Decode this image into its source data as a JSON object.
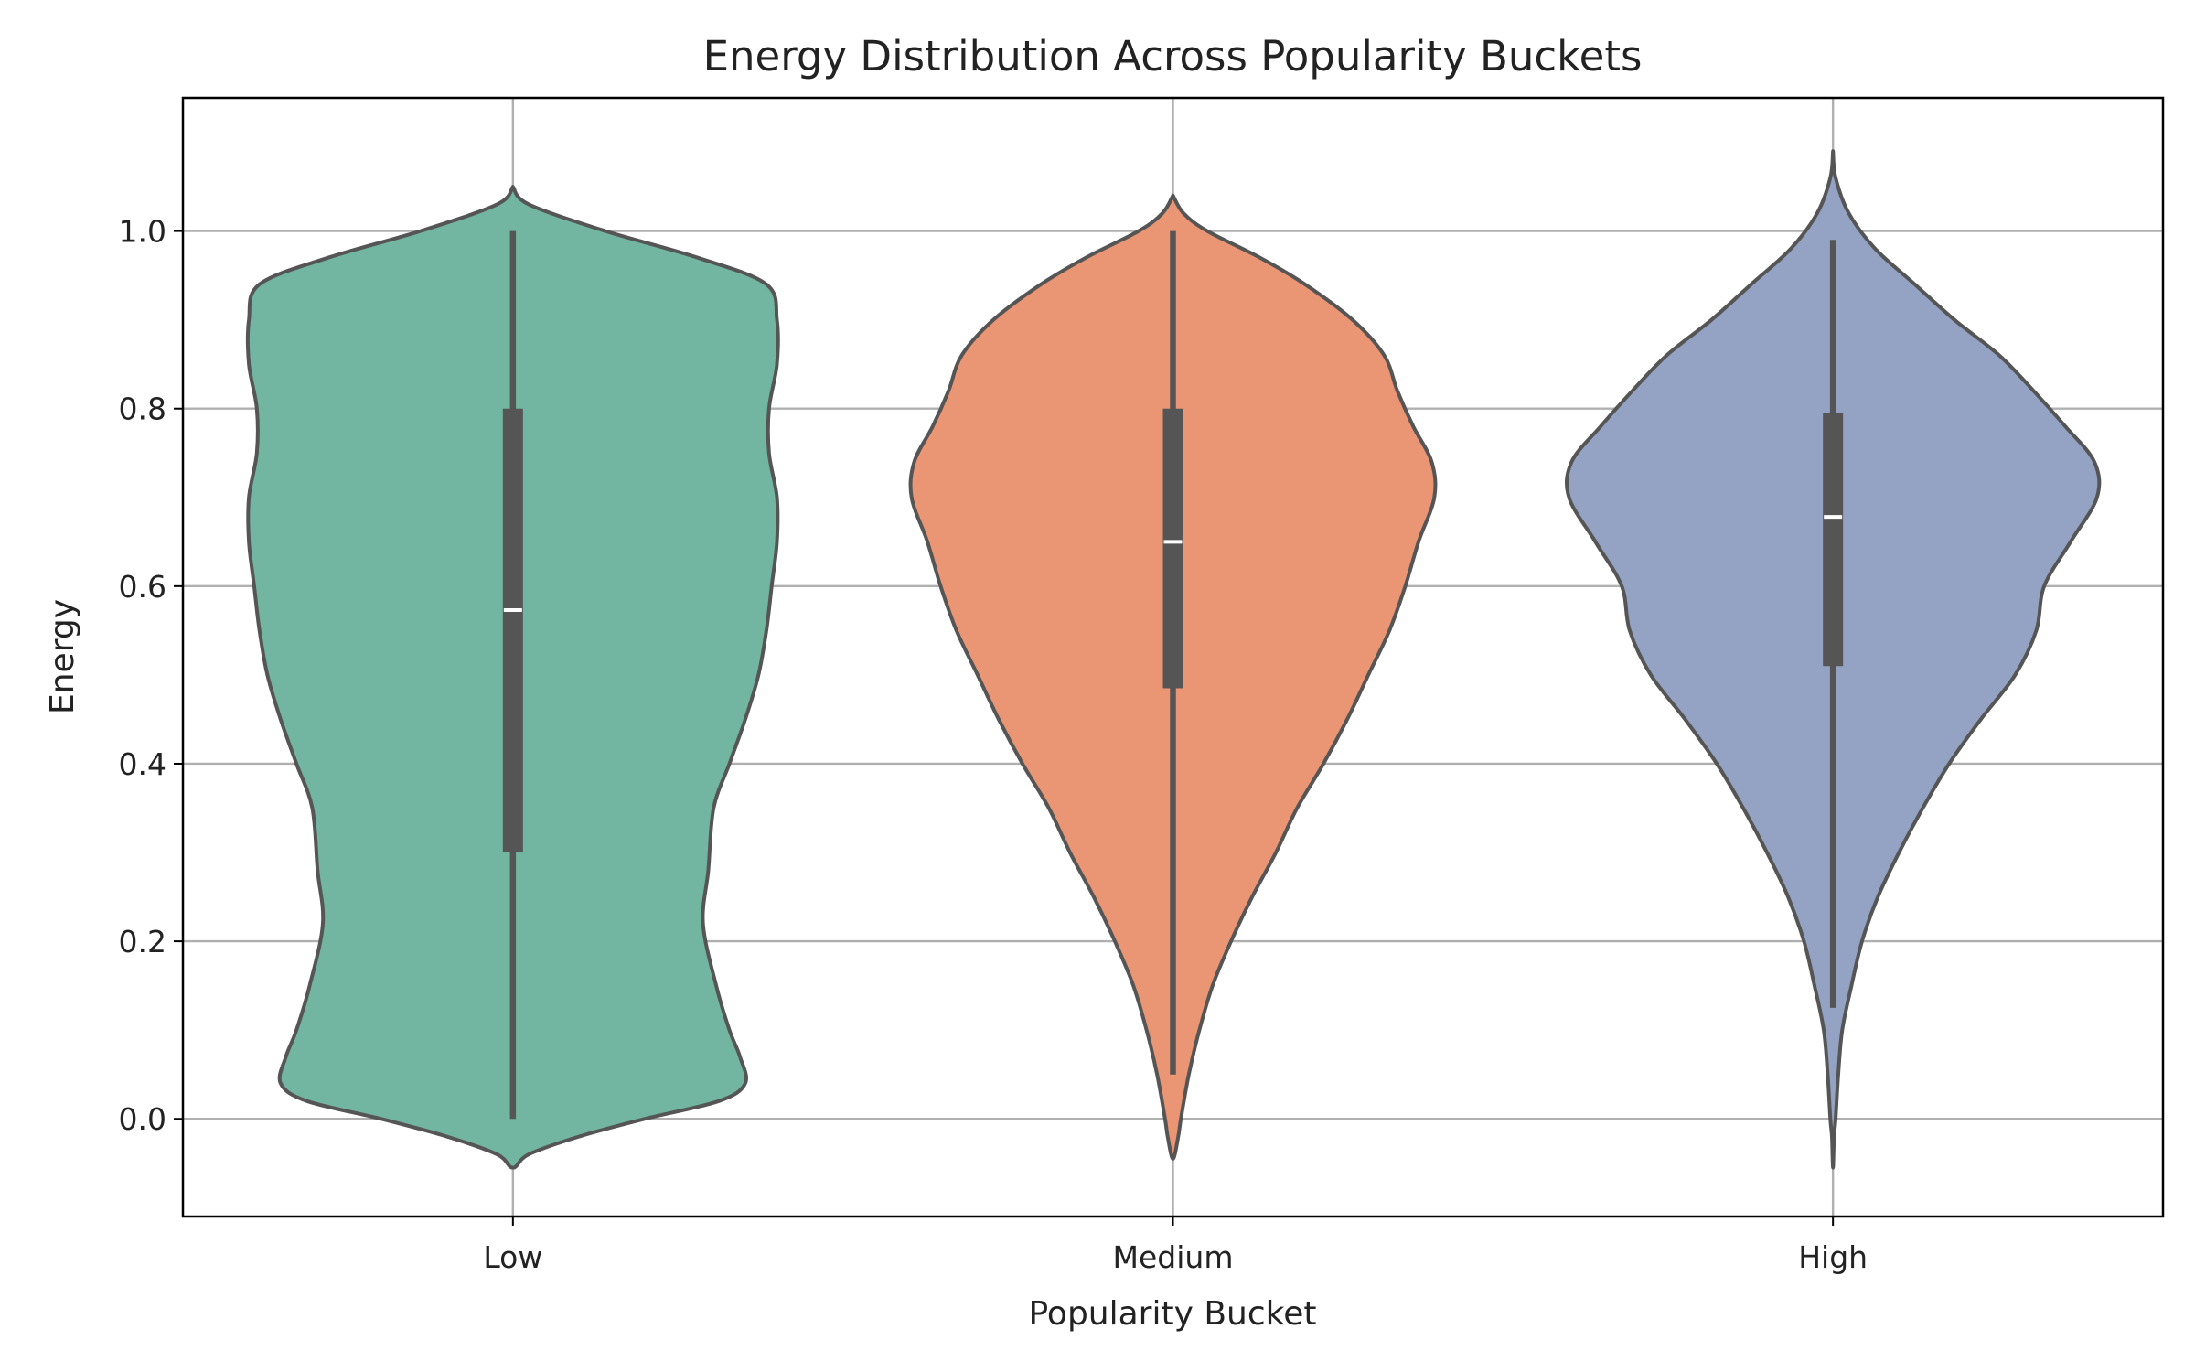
{
  "chart_data": {
    "type": "violin",
    "title": "Energy Distribution Across Popularity Buckets",
    "xlabel": "Popularity Bucket",
    "ylabel": "Energy",
    "ylim": [
      -0.11,
      1.15
    ],
    "yticks": [
      "0.0",
      "0.2",
      "0.4",
      "0.6",
      "0.8",
      "1.0"
    ],
    "yticks_values": [
      0.0,
      0.2,
      0.4,
      0.6,
      0.8,
      1.0
    ],
    "grid": true,
    "categories": [
      "Low",
      "Medium",
      "High"
    ],
    "colors": [
      "#72b5a0",
      "#ea9674",
      "#94a3c3"
    ],
    "series": [
      {
        "category": "Low",
        "min": 0.0,
        "q1": 0.3,
        "median": 0.573,
        "q3": 0.8,
        "max": 1.0,
        "density": [
          [
            -0.055,
            0.0
          ],
          [
            -0.04,
            0.06
          ],
          [
            -0.02,
            0.25
          ],
          [
            0.0,
            0.5
          ],
          [
            0.02,
            0.78
          ],
          [
            0.04,
            0.88
          ],
          [
            0.07,
            0.86
          ],
          [
            0.1,
            0.82
          ],
          [
            0.15,
            0.77
          ],
          [
            0.22,
            0.72
          ],
          [
            0.28,
            0.74
          ],
          [
            0.35,
            0.76
          ],
          [
            0.4,
            0.82
          ],
          [
            0.45,
            0.88
          ],
          [
            0.5,
            0.93
          ],
          [
            0.55,
            0.96
          ],
          [
            0.6,
            0.98
          ],
          [
            0.65,
            1.0
          ],
          [
            0.7,
            1.0
          ],
          [
            0.75,
            0.97
          ],
          [
            0.8,
            0.97
          ],
          [
            0.85,
            1.0
          ],
          [
            0.9,
            1.0
          ],
          [
            0.94,
            0.96
          ],
          [
            0.97,
            0.7
          ],
          [
            1.0,
            0.35
          ],
          [
            1.03,
            0.06
          ],
          [
            1.05,
            0.0
          ]
        ]
      },
      {
        "category": "Medium",
        "min": 0.05,
        "q1": 0.485,
        "median": 0.65,
        "q3": 0.8,
        "max": 1.0,
        "density": [
          [
            -0.045,
            0.0
          ],
          [
            -0.02,
            0.02
          ],
          [
            0.0,
            0.03
          ],
          [
            0.05,
            0.06
          ],
          [
            0.1,
            0.1
          ],
          [
            0.15,
            0.15
          ],
          [
            0.2,
            0.22
          ],
          [
            0.25,
            0.3
          ],
          [
            0.3,
            0.39
          ],
          [
            0.35,
            0.47
          ],
          [
            0.4,
            0.57
          ],
          [
            0.45,
            0.66
          ],
          [
            0.5,
            0.74
          ],
          [
            0.55,
            0.82
          ],
          [
            0.6,
            0.88
          ],
          [
            0.65,
            0.93
          ],
          [
            0.7,
            0.99
          ],
          [
            0.74,
            0.98
          ],
          [
            0.78,
            0.91
          ],
          [
            0.82,
            0.85
          ],
          [
            0.86,
            0.8
          ],
          [
            0.9,
            0.68
          ],
          [
            0.94,
            0.5
          ],
          [
            0.97,
            0.33
          ],
          [
            1.0,
            0.13
          ],
          [
            1.02,
            0.04
          ],
          [
            1.04,
            0.0
          ]
        ]
      },
      {
        "category": "High",
        "min": 0.125,
        "q1": 0.51,
        "median": 0.678,
        "q3": 0.795,
        "max": 0.99,
        "density": [
          [
            -0.055,
            0.0
          ],
          [
            -0.02,
            0.004
          ],
          [
            0.0,
            0.01
          ],
          [
            0.05,
            0.02
          ],
          [
            0.1,
            0.035
          ],
          [
            0.15,
            0.07
          ],
          [
            0.2,
            0.11
          ],
          [
            0.25,
            0.17
          ],
          [
            0.3,
            0.25
          ],
          [
            0.35,
            0.34
          ],
          [
            0.4,
            0.44
          ],
          [
            0.45,
            0.56
          ],
          [
            0.5,
            0.69
          ],
          [
            0.55,
            0.77
          ],
          [
            0.6,
            0.8
          ],
          [
            0.65,
            0.9
          ],
          [
            0.7,
            1.0
          ],
          [
            0.74,
            0.99
          ],
          [
            0.78,
            0.88
          ],
          [
            0.82,
            0.76
          ],
          [
            0.86,
            0.63
          ],
          [
            0.9,
            0.46
          ],
          [
            0.94,
            0.31
          ],
          [
            0.98,
            0.16
          ],
          [
            1.02,
            0.06
          ],
          [
            1.06,
            0.01
          ],
          [
            1.09,
            0.0
          ]
        ]
      }
    ]
  }
}
